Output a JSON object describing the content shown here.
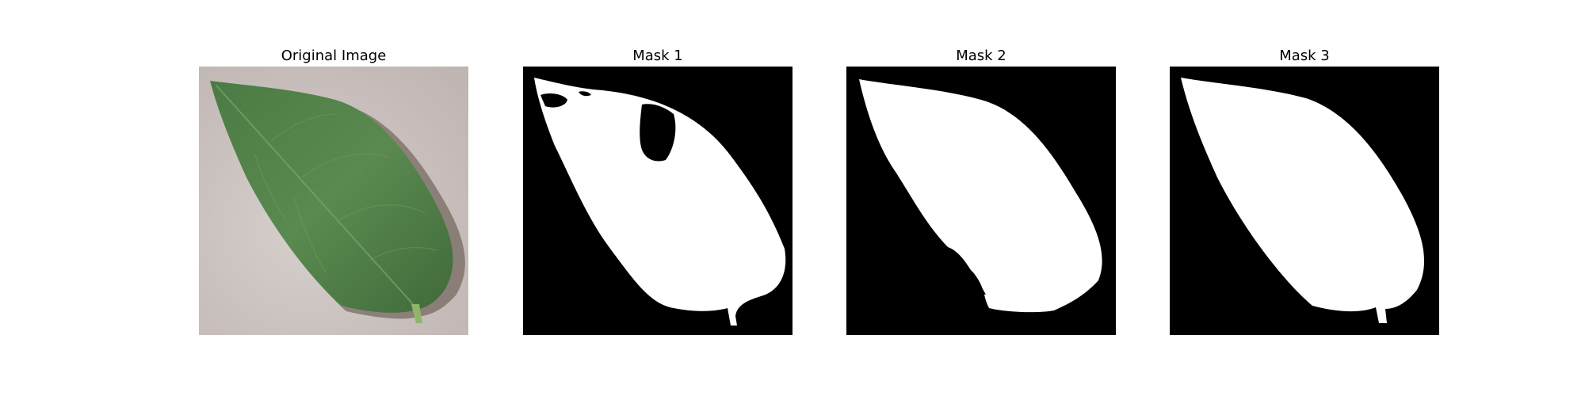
{
  "panels": [
    {
      "title": "Original Image",
      "kind": "photo"
    },
    {
      "title": "Mask 1",
      "kind": "mask"
    },
    {
      "title": "Mask 2",
      "kind": "mask"
    },
    {
      "title": "Mask 3",
      "kind": "mask"
    }
  ],
  "colors": {
    "background": "#ffffff",
    "photo_background": "#c8bfbc",
    "leaf": "#4f7f45",
    "leaf_dark": "#3c6434",
    "mask_background": "#000000",
    "mask_foreground": "#ffffff"
  }
}
